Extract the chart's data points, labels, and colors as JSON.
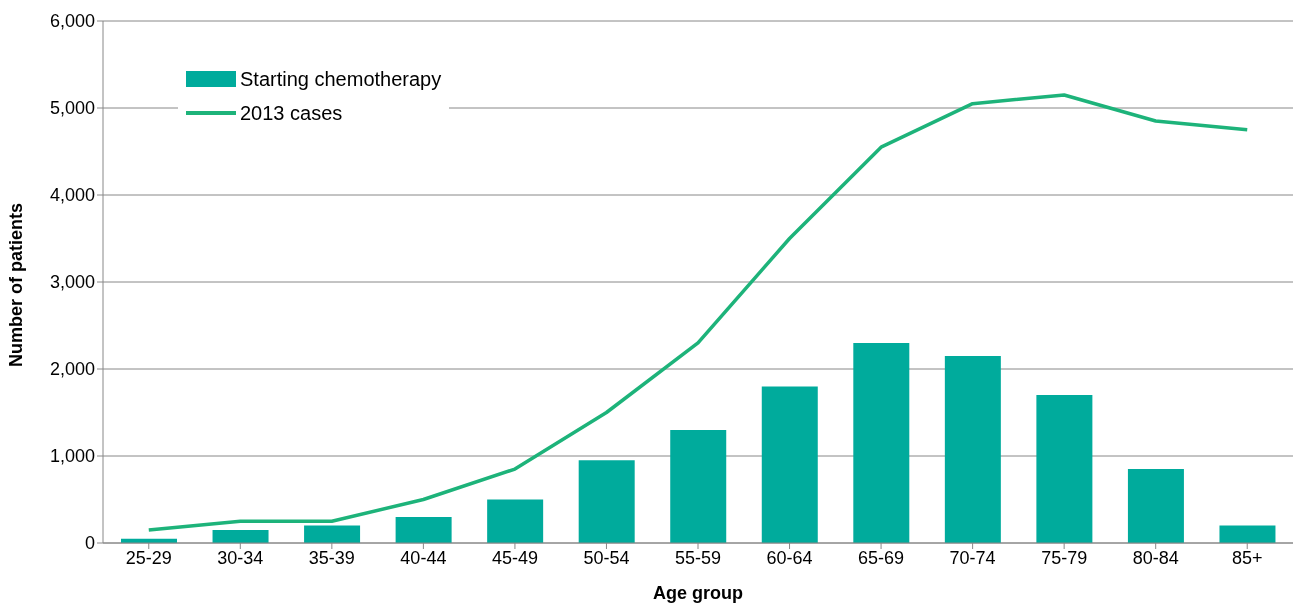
{
  "chart_data": {
    "type": "bar",
    "xlabel": "Age group",
    "ylabel": "Number of patients",
    "categories": [
      "25-29",
      "30-34",
      "35-39",
      "40-44",
      "45-49",
      "50-54",
      "55-59",
      "60-64",
      "65-69",
      "70-74",
      "75-79",
      "80-84",
      "85+"
    ],
    "series": [
      {
        "name": "Starting chemotherapy",
        "color": "#00ab9c",
        "values": [
          50,
          150,
          200,
          300,
          500,
          950,
          1300,
          1800,
          2300,
          2150,
          1700,
          850,
          200
        ]
      },
      {
        "name": "2013 cases",
        "type": "line",
        "color": "#1db37a",
        "values": [
          150,
          250,
          250,
          500,
          850,
          1500,
          2300,
          3500,
          4550,
          5050,
          5150,
          4850,
          4750
        ]
      }
    ],
    "ylim": [
      0,
      6000
    ],
    "yticks": [
      0,
      {
        "value": 1000,
        "label": "1,000"
      },
      {
        "value": 2000,
        "label": "2,000"
      },
      {
        "value": 3000,
        "label": "3,000"
      },
      {
        "value": 4000,
        "label": "4,000"
      },
      {
        "value": 5000,
        "label": "5,000"
      },
      {
        "value": 6000,
        "label": "6,000"
      }
    ],
    "grid": "y",
    "legend": "top left",
    "marker": "none"
  }
}
